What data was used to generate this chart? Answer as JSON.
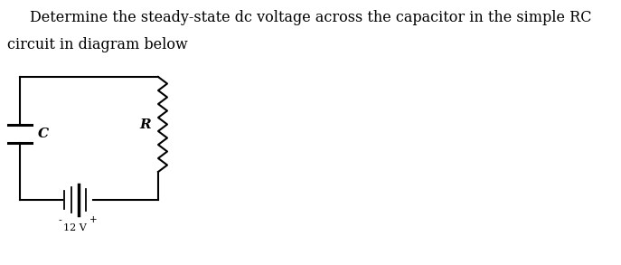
{
  "title_line1": "Determine the steady-state dc voltage across the capacitor in the simple RC",
  "title_line2": "circuit in diagram below",
  "title_fontsize": 11.5,
  "background_color": "#ffffff",
  "circuit_color": "#000000",
  "label_C": "C",
  "label_R": "R",
  "label_V": "12 V",
  "plus_label": "+",
  "minus_label": "-",
  "circuit_linewidth": 1.5
}
